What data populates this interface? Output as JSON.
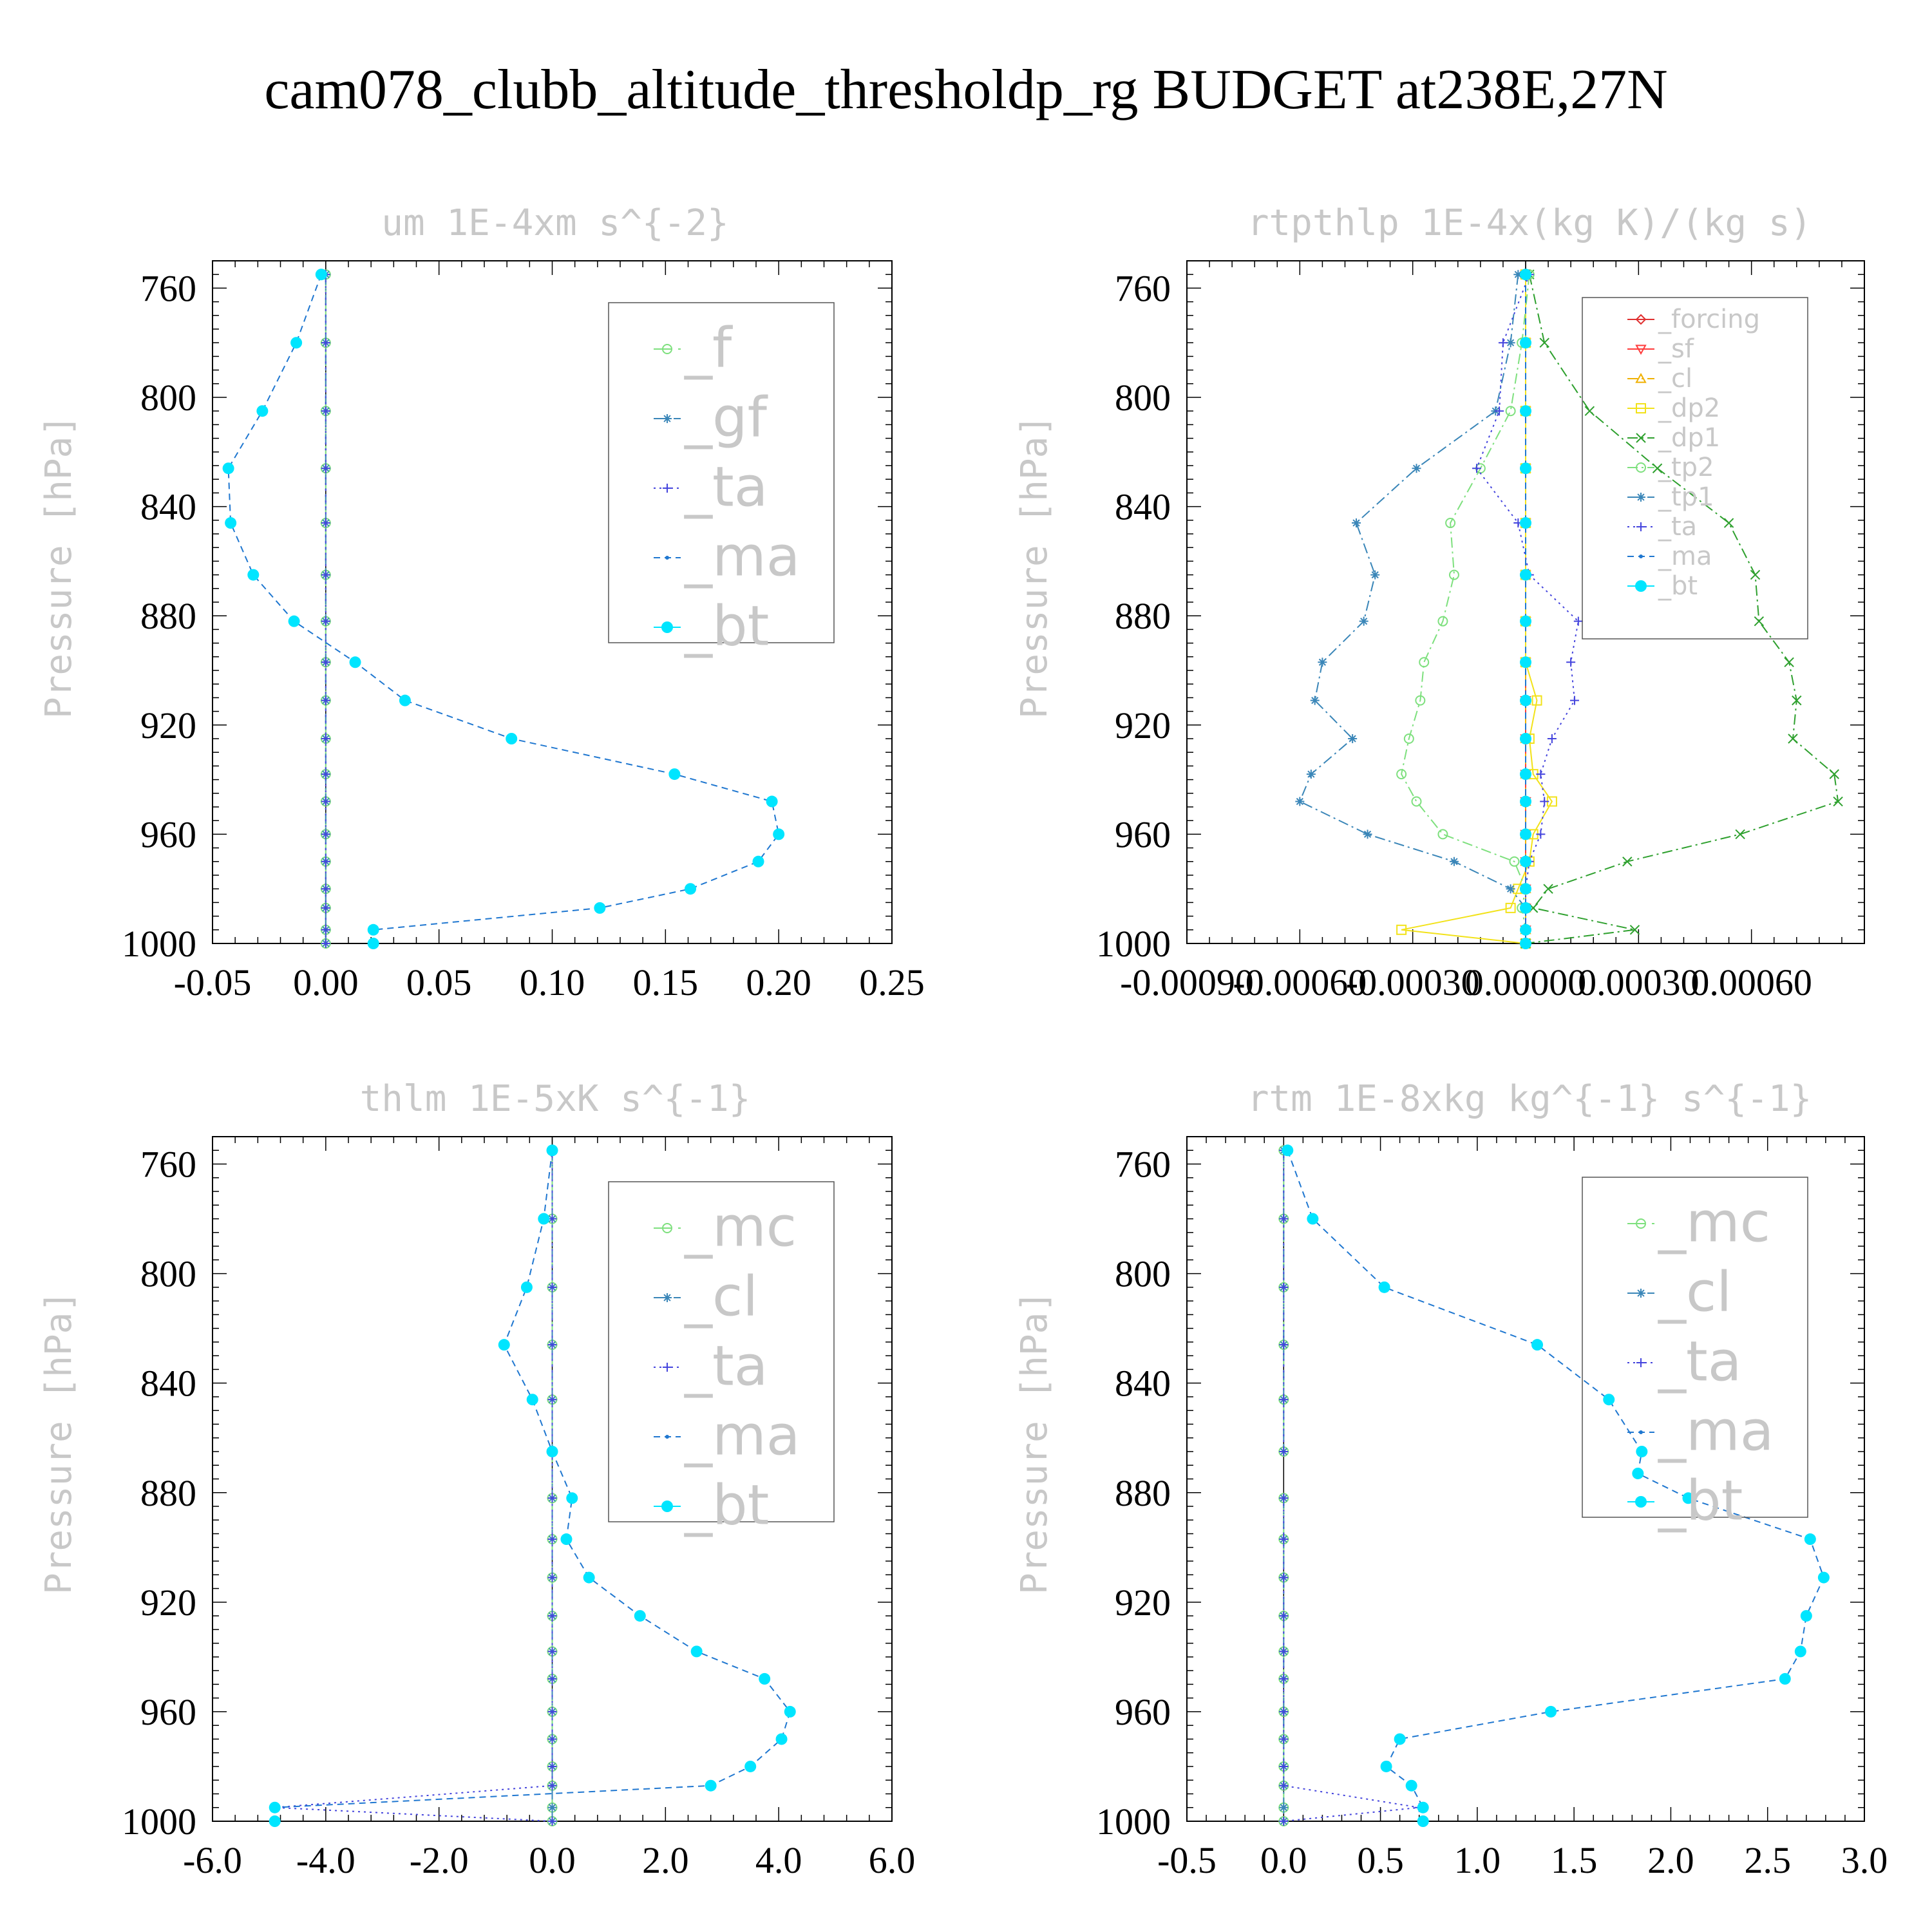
{
  "figure_title": "cam078_clubb_altitude_thresholdp_rg  BUDGET at238E,27N",
  "chart_data": [
    {
      "type": "line",
      "title": "um  1E-4xm s^{-2}",
      "ylabel": "Pressure [hPa]",
      "xlabel": "",
      "y_axis_inverted": true,
      "ylim": [
        1000,
        750
      ],
      "xlim": [
        -0.05,
        0.25
      ],
      "xticks": [
        -0.05,
        0.0,
        0.05,
        0.1,
        0.15,
        0.2,
        0.25
      ],
      "xtick_labels": [
        "-0.05",
        "0.00",
        "0.05",
        "0.10",
        "0.15",
        "0.20",
        "0.25"
      ],
      "yticks": [
        760,
        800,
        840,
        880,
        920,
        960,
        1000
      ],
      "ytick_labels": [
        "760",
        "800",
        "840",
        "880",
        "920",
        "960",
        "1000"
      ],
      "grid": false,
      "legend_position": "top-right",
      "legend_font_scale": 1.5,
      "pressure": [
        755,
        780,
        805,
        826,
        846,
        865,
        882,
        897,
        911,
        925,
        938,
        948,
        960,
        970,
        980,
        987,
        995,
        1000
      ],
      "series": [
        {
          "name": "_f",
          "color": "#7ee07e",
          "marker": "circle-open",
          "dash": "longdash",
          "values": [
            0,
            0,
            0,
            0,
            0,
            0,
            0,
            0,
            0,
            0,
            0,
            0,
            0,
            0,
            0,
            0,
            0,
            0
          ]
        },
        {
          "name": "_gf",
          "color": "#3a86b8",
          "marker": "asterisk",
          "dash": "dashdot",
          "values": [
            0,
            0,
            0,
            0,
            0,
            0,
            0,
            0,
            0,
            0,
            0,
            0,
            0,
            0,
            0,
            0,
            0,
            0
          ]
        },
        {
          "name": "_ta",
          "color": "#4444dd",
          "marker": "plus",
          "dash": "dot",
          "values": [
            0,
            0,
            0,
            0,
            0,
            0,
            0,
            0,
            0,
            0,
            0,
            0,
            0,
            0,
            0,
            0,
            0,
            0
          ]
        },
        {
          "name": "_ma",
          "color": "#1f77d0",
          "marker": "dot",
          "dash": "dash",
          "values": [
            -0.002,
            -0.013,
            -0.028,
            -0.043,
            -0.042,
            -0.032,
            -0.014,
            0.013,
            0.035,
            0.082,
            0.154,
            0.197,
            0.2,
            0.191,
            0.161,
            0.121,
            0.021,
            null
          ]
        },
        {
          "name": "_bt",
          "color": "#00e5ff",
          "marker": "filled-circle",
          "dash": "none",
          "values": [
            -0.002,
            -0.013,
            -0.028,
            -0.043,
            -0.042,
            -0.032,
            -0.014,
            0.013,
            0.035,
            0.082,
            0.154,
            0.197,
            0.2,
            0.191,
            0.161,
            0.121,
            0.021,
            0.021
          ]
        }
      ]
    },
    {
      "type": "line",
      "title": "rtpthlp  1E-4x(kg K)/(kg s)",
      "ylabel": "Pressure [hPa]",
      "xlabel": "",
      "y_axis_inverted": true,
      "ylim": [
        1000,
        750
      ],
      "xlim": [
        -0.0009,
        0.0009
      ],
      "xticks": [
        -0.0009,
        -0.0006,
        -0.0003,
        0.0,
        0.0003,
        0.0006
      ],
      "xtick_labels": [
        "-0.00090",
        "-0.00060",
        "-0.00030",
        "0.00000",
        "0.00030",
        "0.00060"
      ],
      "yticks": [
        760,
        800,
        840,
        880,
        920,
        960,
        1000
      ],
      "ytick_labels": [
        "760",
        "800",
        "840",
        "880",
        "920",
        "960",
        "1000"
      ],
      "grid": false,
      "legend_position": "top-right",
      "legend_font_scale": 0.75,
      "pressure": [
        755,
        780,
        805,
        826,
        846,
        865,
        882,
        897,
        911,
        925,
        938,
        948,
        960,
        970,
        980,
        987,
        995,
        1000
      ],
      "series": [
        {
          "name": "_forcing",
          "color": "#e03030",
          "marker": "diamond-open",
          "dash": "none",
          "values": [
            0,
            0,
            0,
            0,
            0,
            0,
            0,
            0,
            0,
            0,
            0,
            0,
            0,
            0,
            0,
            0,
            0,
            0
          ]
        },
        {
          "name": "_sf",
          "color": "#ff3b3b",
          "marker": "triangle-down-open",
          "dash": "none",
          "values": [
            0,
            0,
            0,
            0,
            0,
            0,
            0,
            0,
            0,
            0,
            0,
            0,
            0,
            0,
            0,
            0,
            0,
            0
          ]
        },
        {
          "name": "_cl",
          "color": "#f0b000",
          "marker": "triangle-up-open",
          "dash": "dashdot",
          "values": [
            0,
            0,
            0,
            0,
            0,
            0,
            0,
            0,
            0,
            0,
            0,
            0,
            0,
            0,
            0,
            0,
            0,
            0
          ]
        },
        {
          "name": "_dp2",
          "color": "#f2e21a",
          "marker": "square-open",
          "dash": "none",
          "values": [
            0,
            0,
            0,
            0,
            0,
            0,
            0,
            0,
            3e-05,
            1e-05,
            2e-05,
            7e-05,
            2e-05,
            1e-05,
            -2e-05,
            -4e-05,
            -0.00033,
            0
          ]
        },
        {
          "name": "_dp1",
          "color": "#2ea02e",
          "marker": "x",
          "dash": "dashdot",
          "values": [
            1e-05,
            5e-05,
            0.00017,
            0.00035,
            0.00054,
            0.00061,
            0.00062,
            0.0007,
            0.00072,
            0.00071,
            0.00082,
            0.00083,
            0.00057,
            0.00027,
            6e-05,
            2e-05,
            0.00029,
            0
          ]
        },
        {
          "name": "_tp2",
          "color": "#7ee07e",
          "marker": "circle-open",
          "dash": "dashdot",
          "values": [
            1e-05,
            -1e-05,
            -4e-05,
            -0.00012,
            -0.0002,
            -0.00019,
            -0.00022,
            -0.00027,
            -0.00028,
            -0.00031,
            -0.00033,
            -0.00029,
            -0.00022,
            -3e-05,
            0.0,
            -1e-05,
            0.0,
            0
          ]
        },
        {
          "name": "_tp1",
          "color": "#3a86b8",
          "marker": "asterisk",
          "dash": "dashdot",
          "values": [
            -2e-05,
            -4e-05,
            -8e-05,
            -0.00029,
            -0.00045,
            -0.0004,
            -0.00043,
            -0.00054,
            -0.00056,
            -0.00046,
            -0.00057,
            -0.0006,
            -0.00042,
            -0.00019,
            -4e-05,
            0.0,
            0.0,
            0
          ]
        },
        {
          "name": "_ta",
          "color": "#4444dd",
          "marker": "plus",
          "dash": "dot",
          "values": [
            1e-05,
            -6e-05,
            -7e-05,
            -0.00013,
            -2e-05,
            1e-05,
            0.00014,
            0.00012,
            0.00013,
            7e-05,
            4e-05,
            5e-05,
            4e-05,
            1e-05,
            0.0,
            0.0,
            0.0,
            0
          ]
        },
        {
          "name": "_ma",
          "color": "#1f77d0",
          "marker": "dot",
          "dash": "dash",
          "values": [
            0,
            0,
            0,
            0,
            0,
            0,
            0,
            0,
            0,
            0,
            0,
            0,
            0,
            0,
            0,
            0,
            0,
            0
          ]
        },
        {
          "name": "_bt",
          "color": "#00e5ff",
          "marker": "filled-circle",
          "dash": "none",
          "values": [
            0,
            0,
            0,
            0,
            0,
            0,
            0,
            0,
            0,
            0,
            0,
            0,
            0,
            0,
            0,
            0,
            0,
            0
          ]
        }
      ]
    },
    {
      "type": "line",
      "title": "thlm  1E-5xK s^{-1}",
      "ylabel": "Pressure [hPa]",
      "xlabel": "",
      "y_axis_inverted": true,
      "ylim": [
        1000,
        750
      ],
      "xlim": [
        -6.0,
        6.0
      ],
      "xticks": [
        -6.0,
        -4.0,
        -2.0,
        0.0,
        2.0,
        4.0,
        6.0
      ],
      "xtick_labels": [
        "-6.0",
        "-4.0",
        "-2.0",
        "0.0",
        "2.0",
        "4.0",
        "6.0"
      ],
      "yticks": [
        760,
        800,
        840,
        880,
        920,
        960,
        1000
      ],
      "ytick_labels": [
        "760",
        "800",
        "840",
        "880",
        "920",
        "960",
        "1000"
      ],
      "grid": false,
      "legend_position": "top-right",
      "legend_font_scale": 1.5,
      "pressure": [
        755,
        780,
        805,
        826,
        846,
        865,
        882,
        897,
        911,
        925,
        938,
        948,
        960,
        970,
        980,
        987,
        995,
        1000
      ],
      "series": [
        {
          "name": "_mc",
          "color": "#7ee07e",
          "marker": "circle-open",
          "dash": "longdash",
          "values": [
            0,
            0,
            0,
            0,
            0,
            0,
            0,
            0,
            0,
            0,
            0,
            0,
            0,
            0,
            0,
            0,
            0,
            0
          ]
        },
        {
          "name": "_cl",
          "color": "#3a86b8",
          "marker": "asterisk",
          "dash": "dashdot",
          "values": [
            0,
            0,
            0,
            0,
            0,
            0,
            0,
            0,
            0,
            0,
            0,
            0,
            0,
            0,
            0,
            0,
            0,
            0
          ]
        },
        {
          "name": "_ta",
          "color": "#4444dd",
          "marker": "plus",
          "dash": "dot",
          "values": [
            0,
            0,
            0,
            0,
            0,
            0,
            0,
            0,
            0,
            0,
            0,
            0,
            0,
            0,
            0,
            0,
            -4.9,
            0
          ]
        },
        {
          "name": "_ma",
          "color": "#1f77d0",
          "marker": "dot",
          "dash": "dash",
          "values": [
            0.0,
            -0.15,
            -0.45,
            -0.85,
            -0.35,
            0.0,
            0.35,
            0.25,
            0.65,
            1.55,
            2.55,
            3.75,
            4.2,
            4.05,
            3.5,
            2.8,
            -4.9,
            null
          ]
        },
        {
          "name": "_bt",
          "color": "#00e5ff",
          "marker": "filled-circle",
          "dash": "none",
          "values": [
            0.0,
            -0.15,
            -0.45,
            -0.85,
            -0.35,
            0.0,
            0.35,
            0.25,
            0.65,
            1.55,
            2.55,
            3.75,
            4.2,
            4.05,
            3.5,
            2.8,
            -4.9,
            -4.9
          ]
        }
      ]
    },
    {
      "type": "line",
      "title": "rtm  1E-8xkg kg^{-1} s^{-1}",
      "ylabel": "Pressure [hPa]",
      "xlabel": "",
      "y_axis_inverted": true,
      "ylim": [
        1000,
        750
      ],
      "xlim": [
        -0.5,
        3.0
      ],
      "xticks": [
        -0.5,
        0.0,
        0.5,
        1.0,
        1.5,
        2.0,
        2.5,
        3.0
      ],
      "xtick_labels": [
        "-0.5",
        "0.0",
        "0.5",
        "1.0",
        "1.5",
        "2.0",
        "2.5",
        "3.0"
      ],
      "yticks": [
        760,
        800,
        840,
        880,
        920,
        960,
        1000
      ],
      "ytick_labels": [
        "760",
        "800",
        "840",
        "880",
        "920",
        "960",
        "1000"
      ],
      "grid": false,
      "legend_position": "top-right",
      "legend_font_scale": 1.5,
      "pressure": [
        755,
        780,
        805,
        826,
        846,
        865,
        873,
        882,
        897,
        911,
        925,
        938,
        948,
        960,
        970,
        980,
        987,
        995,
        1000
      ],
      "series": [
        {
          "name": "_mc",
          "color": "#7ee07e",
          "marker": "circle-open",
          "dash": "longdash",
          "values": [
            0,
            0,
            0,
            0,
            0,
            0,
            null,
            0,
            0,
            0,
            0,
            0,
            0,
            0,
            0,
            0,
            0,
            0,
            0
          ]
        },
        {
          "name": "_cl",
          "color": "#3a86b8",
          "marker": "asterisk",
          "dash": "dashdot",
          "values": [
            0,
            0,
            0,
            0,
            0,
            0,
            null,
            0,
            0,
            0,
            0,
            0,
            0,
            0,
            0,
            0,
            0,
            0,
            0
          ]
        },
        {
          "name": "_ta",
          "color": "#4444dd",
          "marker": "plus",
          "dash": "dot",
          "values": [
            0,
            0,
            0,
            0,
            0,
            0,
            null,
            0,
            0,
            0,
            0,
            0,
            0,
            0,
            0,
            0,
            0,
            0.7,
            0
          ]
        },
        {
          "name": "_ma",
          "color": "#1f77d0",
          "marker": "dot",
          "dash": "dash",
          "values": [
            0.02,
            0.15,
            0.52,
            1.31,
            1.68,
            1.85,
            1.83,
            2.09,
            2.72,
            2.79,
            2.7,
            2.67,
            2.59,
            1.38,
            0.6,
            0.53,
            0.66,
            0.72,
            null
          ]
        },
        {
          "name": "_bt",
          "color": "#00e5ff",
          "marker": "filled-circle",
          "dash": "none",
          "values": [
            0.02,
            0.15,
            0.52,
            1.31,
            1.68,
            1.85,
            1.83,
            2.09,
            2.72,
            2.79,
            2.7,
            2.67,
            2.59,
            1.38,
            0.6,
            0.53,
            0.66,
            0.72,
            0.72
          ]
        }
      ]
    }
  ]
}
